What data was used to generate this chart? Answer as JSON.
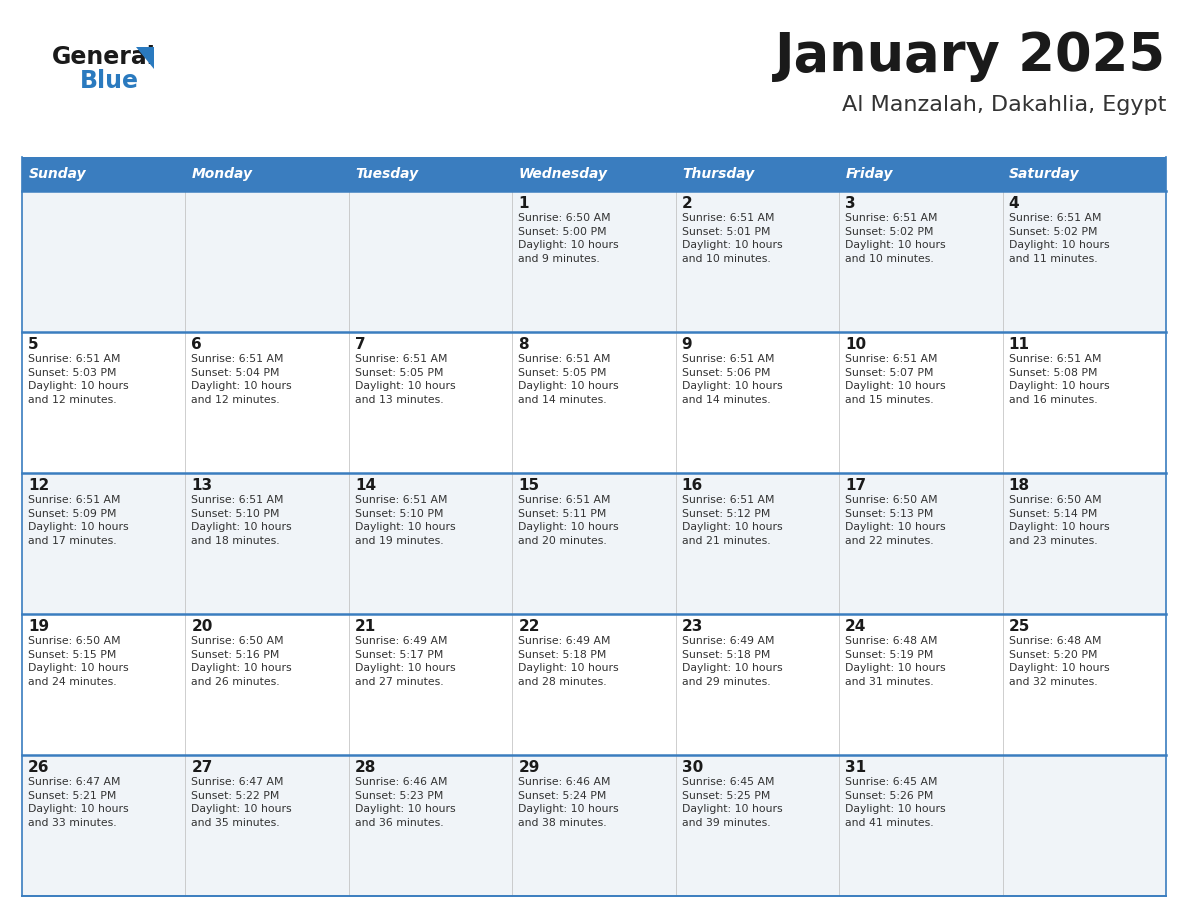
{
  "title": "January 2025",
  "subtitle": "Al Manzalah, Dakahlia, Egypt",
  "days_of_week": [
    "Sunday",
    "Monday",
    "Tuesday",
    "Wednesday",
    "Thursday",
    "Friday",
    "Saturday"
  ],
  "header_bg": "#3a7dbf",
  "header_text_color": "#ffffff",
  "row_bg_even": "#f0f4f8",
  "row_bg_odd": "#ffffff",
  "cell_border_color": "#3a7dbf",
  "title_color": "#1a1a1a",
  "subtitle_color": "#333333",
  "day_number_color": "#1a1a1a",
  "cell_text_color": "#333333",
  "logo_general_color": "#1a1a1a",
  "logo_blue_color": "#2a7abf",
  "calendar": [
    [
      {
        "day": "",
        "info": ""
      },
      {
        "day": "",
        "info": ""
      },
      {
        "day": "",
        "info": ""
      },
      {
        "day": "1",
        "info": "Sunrise: 6:50 AM\nSunset: 5:00 PM\nDaylight: 10 hours\nand 9 minutes."
      },
      {
        "day": "2",
        "info": "Sunrise: 6:51 AM\nSunset: 5:01 PM\nDaylight: 10 hours\nand 10 minutes."
      },
      {
        "day": "3",
        "info": "Sunrise: 6:51 AM\nSunset: 5:02 PM\nDaylight: 10 hours\nand 10 minutes."
      },
      {
        "day": "4",
        "info": "Sunrise: 6:51 AM\nSunset: 5:02 PM\nDaylight: 10 hours\nand 11 minutes."
      }
    ],
    [
      {
        "day": "5",
        "info": "Sunrise: 6:51 AM\nSunset: 5:03 PM\nDaylight: 10 hours\nand 12 minutes."
      },
      {
        "day": "6",
        "info": "Sunrise: 6:51 AM\nSunset: 5:04 PM\nDaylight: 10 hours\nand 12 minutes."
      },
      {
        "day": "7",
        "info": "Sunrise: 6:51 AM\nSunset: 5:05 PM\nDaylight: 10 hours\nand 13 minutes."
      },
      {
        "day": "8",
        "info": "Sunrise: 6:51 AM\nSunset: 5:05 PM\nDaylight: 10 hours\nand 14 minutes."
      },
      {
        "day": "9",
        "info": "Sunrise: 6:51 AM\nSunset: 5:06 PM\nDaylight: 10 hours\nand 14 minutes."
      },
      {
        "day": "10",
        "info": "Sunrise: 6:51 AM\nSunset: 5:07 PM\nDaylight: 10 hours\nand 15 minutes."
      },
      {
        "day": "11",
        "info": "Sunrise: 6:51 AM\nSunset: 5:08 PM\nDaylight: 10 hours\nand 16 minutes."
      }
    ],
    [
      {
        "day": "12",
        "info": "Sunrise: 6:51 AM\nSunset: 5:09 PM\nDaylight: 10 hours\nand 17 minutes."
      },
      {
        "day": "13",
        "info": "Sunrise: 6:51 AM\nSunset: 5:10 PM\nDaylight: 10 hours\nand 18 minutes."
      },
      {
        "day": "14",
        "info": "Sunrise: 6:51 AM\nSunset: 5:10 PM\nDaylight: 10 hours\nand 19 minutes."
      },
      {
        "day": "15",
        "info": "Sunrise: 6:51 AM\nSunset: 5:11 PM\nDaylight: 10 hours\nand 20 minutes."
      },
      {
        "day": "16",
        "info": "Sunrise: 6:51 AM\nSunset: 5:12 PM\nDaylight: 10 hours\nand 21 minutes."
      },
      {
        "day": "17",
        "info": "Sunrise: 6:50 AM\nSunset: 5:13 PM\nDaylight: 10 hours\nand 22 minutes."
      },
      {
        "day": "18",
        "info": "Sunrise: 6:50 AM\nSunset: 5:14 PM\nDaylight: 10 hours\nand 23 minutes."
      }
    ],
    [
      {
        "day": "19",
        "info": "Sunrise: 6:50 AM\nSunset: 5:15 PM\nDaylight: 10 hours\nand 24 minutes."
      },
      {
        "day": "20",
        "info": "Sunrise: 6:50 AM\nSunset: 5:16 PM\nDaylight: 10 hours\nand 26 minutes."
      },
      {
        "day": "21",
        "info": "Sunrise: 6:49 AM\nSunset: 5:17 PM\nDaylight: 10 hours\nand 27 minutes."
      },
      {
        "day": "22",
        "info": "Sunrise: 6:49 AM\nSunset: 5:18 PM\nDaylight: 10 hours\nand 28 minutes."
      },
      {
        "day": "23",
        "info": "Sunrise: 6:49 AM\nSunset: 5:18 PM\nDaylight: 10 hours\nand 29 minutes."
      },
      {
        "day": "24",
        "info": "Sunrise: 6:48 AM\nSunset: 5:19 PM\nDaylight: 10 hours\nand 31 minutes."
      },
      {
        "day": "25",
        "info": "Sunrise: 6:48 AM\nSunset: 5:20 PM\nDaylight: 10 hours\nand 32 minutes."
      }
    ],
    [
      {
        "day": "26",
        "info": "Sunrise: 6:47 AM\nSunset: 5:21 PM\nDaylight: 10 hours\nand 33 minutes."
      },
      {
        "day": "27",
        "info": "Sunrise: 6:47 AM\nSunset: 5:22 PM\nDaylight: 10 hours\nand 35 minutes."
      },
      {
        "day": "28",
        "info": "Sunrise: 6:46 AM\nSunset: 5:23 PM\nDaylight: 10 hours\nand 36 minutes."
      },
      {
        "day": "29",
        "info": "Sunrise: 6:46 AM\nSunset: 5:24 PM\nDaylight: 10 hours\nand 38 minutes."
      },
      {
        "day": "30",
        "info": "Sunrise: 6:45 AM\nSunset: 5:25 PM\nDaylight: 10 hours\nand 39 minutes."
      },
      {
        "day": "31",
        "info": "Sunrise: 6:45 AM\nSunset: 5:26 PM\nDaylight: 10 hours\nand 41 minutes."
      },
      {
        "day": "",
        "info": ""
      }
    ]
  ]
}
